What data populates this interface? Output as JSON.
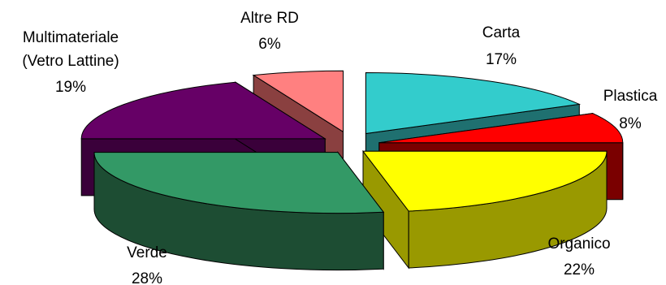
{
  "chart_data": {
    "type": "pie",
    "style": "3d-exploded",
    "title": "",
    "slices": [
      {
        "name": "Carta",
        "value": 17,
        "label": "Carta",
        "pct": "17%",
        "color": "#33CCCC",
        "side": "#1F7070"
      },
      {
        "name": "Plastica",
        "value": 8,
        "label": "Plastica",
        "pct": "8%",
        "color": "#FF0000",
        "side": "#7A0000"
      },
      {
        "name": "Organico",
        "value": 22,
        "label": "Organico",
        "pct": "22%",
        "color": "#FFFF00",
        "side": "#999900"
      },
      {
        "name": "Verde",
        "value": 28,
        "label": "Verde",
        "pct": "28%",
        "color": "#339966",
        "side": "#1D4D33"
      },
      {
        "name": "Multimateriale (Vetro Lattine)",
        "value": 19,
        "label_lines": [
          "Multimateriale",
          "(Vetro Lattine)"
        ],
        "pct": "19%",
        "color": "#660066",
        "side": "#3A003A"
      },
      {
        "name": "Altre RD",
        "value": 6,
        "label": "Altre RD",
        "pct": "6%",
        "color": "#FF8080",
        "side": "#8A4040"
      }
    ]
  }
}
